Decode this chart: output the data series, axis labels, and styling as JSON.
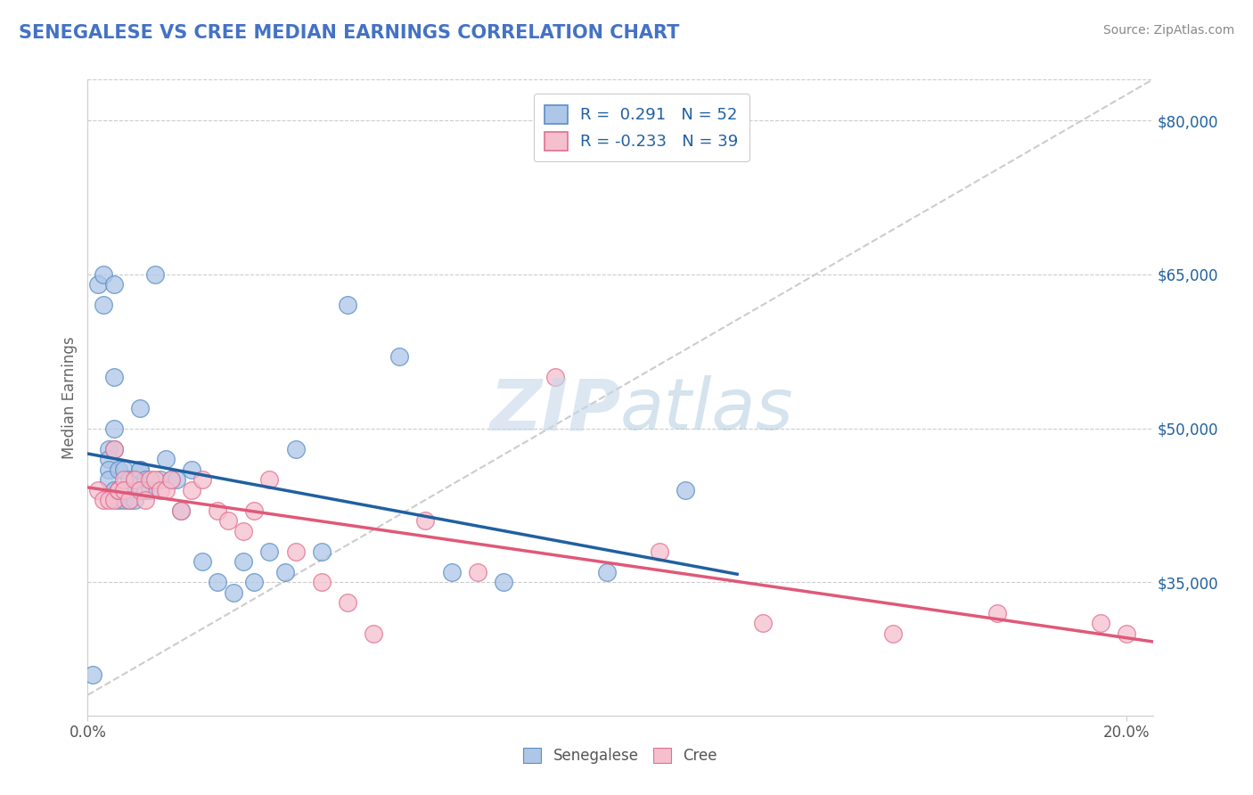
{
  "title": "SENEGALESE VS CREE MEDIAN EARNINGS CORRELATION CHART",
  "source": "Source: ZipAtlas.com",
  "ylabel": "Median Earnings",
  "xlim": [
    0.0,
    0.205
  ],
  "ylim": [
    22000,
    84000
  ],
  "ytick_values": [
    35000,
    50000,
    65000,
    80000
  ],
  "ytick_labels": [
    "$35,000",
    "$50,000",
    "$65,000",
    "$80,000"
  ],
  "blue_R": 0.291,
  "blue_N": 52,
  "pink_R": -0.233,
  "pink_N": 39,
  "blue_color": "#aec6e8",
  "pink_color": "#f5bfce",
  "blue_edge_color": "#5a8fc4",
  "pink_edge_color": "#e07090",
  "blue_line_color": "#2060a0",
  "pink_line_color": "#e05878",
  "title_color": "#4472c4",
  "source_color": "#888888",
  "ylabel_color": "#666666",
  "background_color": "#ffffff",
  "grid_color": "#cccccc",
  "watermark_zip_color": "#c8d8e8",
  "watermark_atlas_color": "#b0c8d8",
  "senegalese_x": [
    0.001,
    0.002,
    0.003,
    0.003,
    0.004,
    0.004,
    0.004,
    0.004,
    0.005,
    0.005,
    0.005,
    0.005,
    0.005,
    0.006,
    0.006,
    0.006,
    0.007,
    0.007,
    0.007,
    0.008,
    0.008,
    0.008,
    0.009,
    0.009,
    0.01,
    0.01,
    0.01,
    0.011,
    0.011,
    0.012,
    0.013,
    0.014,
    0.015,
    0.016,
    0.017,
    0.018,
    0.02,
    0.022,
    0.025,
    0.028,
    0.03,
    0.032,
    0.035,
    0.038,
    0.04,
    0.045,
    0.05,
    0.06,
    0.07,
    0.08,
    0.1,
    0.115
  ],
  "senegalese_y": [
    26000,
    64000,
    62000,
    65000,
    48000,
    47000,
    46000,
    45000,
    64000,
    55000,
    50000,
    48000,
    44000,
    44000,
    46000,
    43000,
    46000,
    44000,
    43000,
    45000,
    44000,
    43000,
    45000,
    43000,
    52000,
    46000,
    46000,
    45000,
    44000,
    44000,
    65000,
    45000,
    47000,
    45000,
    45000,
    42000,
    46000,
    37000,
    35000,
    34000,
    37000,
    35000,
    38000,
    36000,
    48000,
    38000,
    62000,
    57000,
    36000,
    35000,
    36000,
    44000
  ],
  "cree_x": [
    0.002,
    0.003,
    0.004,
    0.005,
    0.005,
    0.006,
    0.006,
    0.007,
    0.007,
    0.008,
    0.009,
    0.01,
    0.011,
    0.012,
    0.013,
    0.014,
    0.015,
    0.016,
    0.018,
    0.02,
    0.022,
    0.025,
    0.027,
    0.03,
    0.032,
    0.035,
    0.04,
    0.045,
    0.05,
    0.055,
    0.065,
    0.075,
    0.09,
    0.11,
    0.13,
    0.155,
    0.175,
    0.195,
    0.2
  ],
  "cree_y": [
    44000,
    43000,
    43000,
    43000,
    48000,
    44000,
    44000,
    45000,
    44000,
    43000,
    45000,
    44000,
    43000,
    45000,
    45000,
    44000,
    44000,
    45000,
    42000,
    44000,
    45000,
    42000,
    41000,
    40000,
    42000,
    45000,
    38000,
    35000,
    33000,
    30000,
    41000,
    36000,
    55000,
    38000,
    31000,
    30000,
    32000,
    31000,
    30000
  ]
}
